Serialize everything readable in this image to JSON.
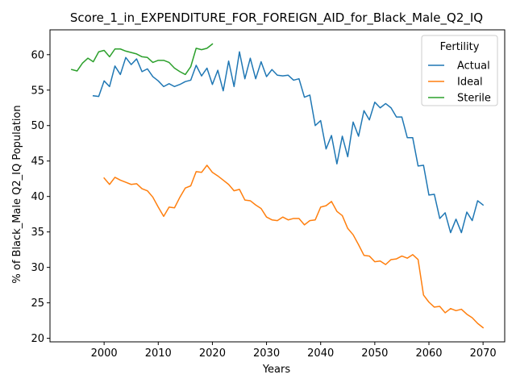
{
  "chart_data": {
    "type": "line",
    "title": "Score_1_in_EXPENDITURE_FOR_FOREIGN_AID_for_Black_Male_Q2_IQ",
    "xlabel": "Years",
    "ylabel": "% of Black_Male Q2_IQ Population",
    "xlim": [
      1990,
      2074
    ],
    "ylim": [
      19.5,
      63.5
    ],
    "xticks": [
      2000,
      2010,
      2020,
      2030,
      2040,
      2050,
      2060,
      2070
    ],
    "yticks": [
      20,
      25,
      30,
      35,
      40,
      45,
      50,
      55,
      60
    ],
    "grid": false,
    "legend": {
      "title": "Fertility",
      "placement": "top-right"
    },
    "series": [
      {
        "name": "Actual",
        "color": "#1f77b4",
        "x": [
          1998,
          1999,
          2000,
          2001,
          2002,
          2003,
          2004,
          2005,
          2006,
          2007,
          2008,
          2009,
          2010,
          2011,
          2012,
          2013,
          2014,
          2015,
          2016,
          2017,
          2018,
          2019,
          2020,
          2021,
          2022,
          2023,
          2024,
          2025,
          2026,
          2027,
          2028,
          2029,
          2030,
          2031,
          2032,
          2033,
          2034,
          2035,
          2036,
          2037,
          2038,
          2039,
          2040,
          2041,
          2042,
          2043,
          2044,
          2045,
          2046,
          2047,
          2048,
          2049,
          2050,
          2051,
          2052,
          2053,
          2054,
          2055,
          2056,
          2057,
          2058,
          2059,
          2060,
          2061,
          2062,
          2063,
          2064,
          2065,
          2066,
          2067,
          2068,
          2069,
          2070
        ],
        "values": [
          54.2,
          54.1,
          56.3,
          55.5,
          58.4,
          57.2,
          59.6,
          58.6,
          59.4,
          57.6,
          58.0,
          56.9,
          56.3,
          55.5,
          55.9,
          55.5,
          55.8,
          56.2,
          56.4,
          58.5,
          57.0,
          58.1,
          55.8,
          57.8,
          54.9,
          59.1,
          55.5,
          60.4,
          56.6,
          59.5,
          56.6,
          59.0,
          56.9,
          57.9,
          57.1,
          57.0,
          57.1,
          56.4,
          56.6,
          54.0,
          54.3,
          50.0,
          50.7,
          46.7,
          48.6,
          44.6,
          48.5,
          45.6,
          50.5,
          48.5,
          52.1,
          50.8,
          53.3,
          52.5,
          53.1,
          52.5,
          51.2,
          51.2,
          48.3,
          48.3,
          44.3,
          44.4,
          40.2,
          40.3,
          36.9,
          37.7,
          34.9,
          36.8,
          34.9,
          37.8,
          36.6,
          39.4,
          38.8
        ]
      },
      {
        "name": "Ideal",
        "color": "#ff7f0e",
        "x": [
          2000,
          2001,
          2002,
          2003,
          2004,
          2005,
          2006,
          2007,
          2008,
          2009,
          2010,
          2011,
          2012,
          2013,
          2014,
          2015,
          2016,
          2017,
          2018,
          2019,
          2020,
          2021,
          2022,
          2023,
          2024,
          2025,
          2026,
          2027,
          2028,
          2029,
          2030,
          2031,
          2032,
          2033,
          2034,
          2035,
          2036,
          2037,
          2038,
          2039,
          2040,
          2041,
          2042,
          2043,
          2044,
          2045,
          2046,
          2047,
          2048,
          2049,
          2050,
          2051,
          2052,
          2053,
          2054,
          2055,
          2056,
          2057,
          2058,
          2059,
          2060,
          2061,
          2062,
          2063,
          2064,
          2065,
          2066,
          2067,
          2068,
          2069,
          2070
        ],
        "values": [
          42.6,
          41.7,
          42.7,
          42.3,
          42.0,
          41.7,
          41.8,
          41.1,
          40.8,
          39.9,
          38.5,
          37.2,
          38.5,
          38.4,
          39.9,
          41.2,
          41.5,
          43.5,
          43.4,
          44.4,
          43.4,
          42.9,
          42.3,
          41.7,
          40.8,
          41.0,
          39.5,
          39.4,
          38.8,
          38.3,
          37.1,
          36.7,
          36.6,
          37.1,
          36.7,
          36.9,
          36.9,
          36.0,
          36.6,
          36.7,
          38.5,
          38.7,
          39.3,
          37.9,
          37.3,
          35.5,
          34.6,
          33.2,
          31.7,
          31.6,
          30.8,
          30.9,
          30.4,
          31.1,
          31.2,
          31.6,
          31.3,
          31.8,
          31.1,
          26.1,
          25.1,
          24.4,
          24.5,
          23.6,
          24.2,
          23.9,
          24.1,
          23.4,
          22.9,
          22.1,
          21.5
        ]
      },
      {
        "name": "Sterile",
        "color": "#2ca02c",
        "x": [
          1994,
          1995,
          1996,
          1997,
          1998,
          1999,
          2000,
          2001,
          2002,
          2003,
          2004,
          2005,
          2006,
          2007,
          2008,
          2009,
          2010,
          2011,
          2012,
          2013,
          2014,
          2015,
          2016,
          2017,
          2018,
          2019,
          2020
        ],
        "values": [
          57.9,
          57.7,
          58.8,
          59.5,
          59.0,
          60.4,
          60.6,
          59.7,
          60.8,
          60.8,
          60.5,
          60.3,
          60.1,
          59.7,
          59.6,
          58.9,
          59.2,
          59.2,
          58.9,
          58.1,
          57.6,
          57.2,
          58.3,
          60.9,
          60.7,
          60.9,
          61.5
        ]
      }
    ]
  }
}
